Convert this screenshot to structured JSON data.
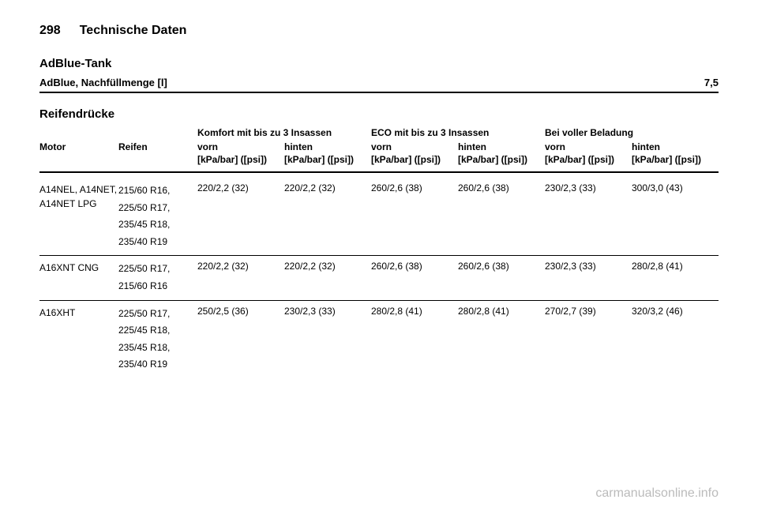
{
  "header": {
    "page_number": "298",
    "title": "Technische Daten"
  },
  "adblue": {
    "section_title": "AdBlue-Tank",
    "label": "AdBlue, Nachfüllmenge [l]",
    "value": "7,5"
  },
  "tires": {
    "section_title": "Reifendrücke",
    "col_motor": "Motor",
    "col_reifen": "Reifen",
    "group_komfort": "Komfort mit bis zu 3 Insassen",
    "group_eco": "ECO mit bis zu 3 Insassen",
    "group_beladung": "Bei voller Beladung",
    "sub_vorn": "vorn",
    "sub_hinten": "hinten",
    "unit": "[kPa/bar] ([psi])",
    "rows": [
      {
        "motor": "A14NEL, A14NET, A14NET LPG",
        "reifen": [
          "215/60 R16,",
          "225/50 R17,",
          "235/45 R18,",
          "235/40 R19"
        ],
        "v": [
          "220/2,2 (32)",
          "220/2,2 (32)",
          "260/2,6 (38)",
          "260/2,6 (38)",
          "230/2,3 (33)",
          "300/3,0 (43)"
        ]
      },
      {
        "motor": "A16XNT CNG",
        "reifen": [
          "225/50 R17,",
          "215/60 R16"
        ],
        "v": [
          "220/2,2 (32)",
          "220/2,2 (32)",
          "260/2,6 (38)",
          "260/2,6 (38)",
          "230/2,3 (33)",
          "280/2,8 (41)"
        ]
      },
      {
        "motor": "A16XHT",
        "reifen": [
          "225/50 R17,",
          "225/45 R18,",
          "235/45 R18,",
          "235/40 R19"
        ],
        "v": [
          "250/2,5 (36)",
          "230/2,3 (33)",
          "280/2,8 (41)",
          "280/2,8 (41)",
          "270/2,7 (39)",
          "320/3,2 (46)"
        ]
      }
    ]
  },
  "watermark": "carmanualsonline.info"
}
